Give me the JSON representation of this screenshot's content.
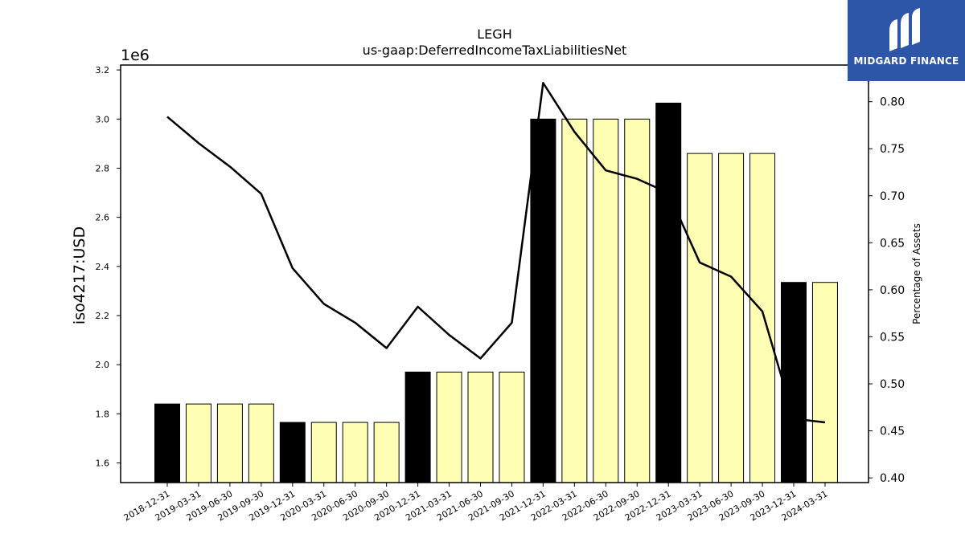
{
  "chart_data": {
    "type": "bar",
    "title": "LEGH",
    "subtitle": "us-gaap:DeferredIncomeTaxLiabilitiesNet",
    "ylabel": "iso4217:USD",
    "y2label": "Percentage of Assets",
    "y_offset_label": "1e6",
    "categories": [
      "2018-12-31",
      "2019-03-31",
      "2019-06-30",
      "2019-09-30",
      "2019-12-31",
      "2020-03-31",
      "2020-06-30",
      "2020-09-30",
      "2020-12-31",
      "2021-03-31",
      "2021-06-30",
      "2021-09-30",
      "2021-12-31",
      "2022-03-31",
      "2022-06-30",
      "2022-09-30",
      "2022-12-31",
      "2023-03-31",
      "2023-06-30",
      "2023-09-30",
      "2023-12-31",
      "2024-03-31"
    ],
    "values": [
      1.84,
      1.84,
      1.84,
      1.84,
      1.765,
      1.765,
      1.765,
      1.765,
      1.97,
      1.97,
      1.97,
      1.97,
      3.0,
      3.0,
      3.0,
      3.0,
      3.065,
      2.86,
      2.86,
      2.86,
      2.335,
      2.335
    ],
    "bar_kind": [
      "annual",
      "quarter",
      "quarter",
      "quarter",
      "annual",
      "quarter",
      "quarter",
      "quarter",
      "annual",
      "quarter",
      "quarter",
      "quarter",
      "annual",
      "quarter",
      "quarter",
      "quarter",
      "annual",
      "quarter",
      "quarter",
      "quarter",
      "annual",
      "quarter"
    ],
    "line_values": [
      0.784,
      0.756,
      0.731,
      0.702,
      0.623,
      0.585,
      0.565,
      0.538,
      0.582,
      0.552,
      0.527,
      0.565,
      0.82,
      0.768,
      0.727,
      0.718,
      0.703,
      0.629,
      0.614,
      0.577,
      0.463,
      0.459
    ],
    "ylim": [
      1.52,
      3.22
    ],
    "yticks": [
      "1.6",
      "1.8",
      "2.0",
      "2.2",
      "2.4",
      "2.6",
      "2.8",
      "3.0",
      "3.2"
    ],
    "y2lim": [
      0.395,
      0.839
    ],
    "y2ticks": [
      "0.40",
      "0.45",
      "0.50",
      "0.55",
      "0.60",
      "0.65",
      "0.70",
      "0.75",
      "0.80"
    ],
    "colors": {
      "annual": "#000000",
      "quarter": "#ffffb3",
      "line": "#000000"
    }
  },
  "logo": {
    "text": "MIDGARD FINANCE",
    "bg": "#2d56a8"
  }
}
